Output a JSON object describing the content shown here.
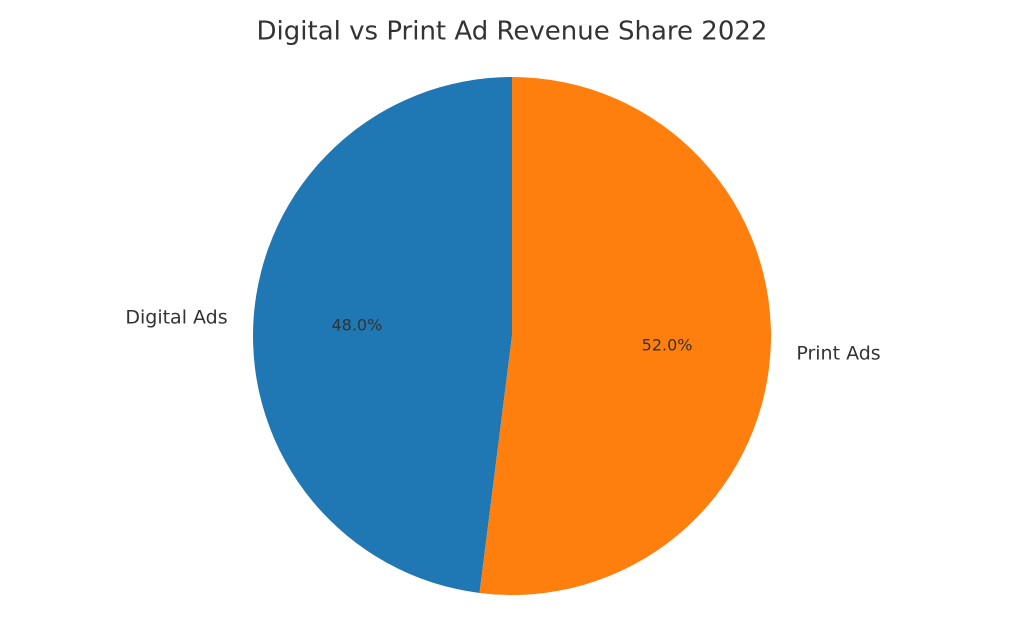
{
  "chart_data": {
    "type": "pie",
    "title": "Digital vs Print Ad Revenue Share 2022",
    "categories": [
      "Digital Ads",
      "Print Ads"
    ],
    "values": [
      48,
      52
    ],
    "value_labels": [
      "48.0%",
      "52.0%"
    ],
    "colors": [
      "#1f77b4",
      "#ff7f0e"
    ]
  }
}
